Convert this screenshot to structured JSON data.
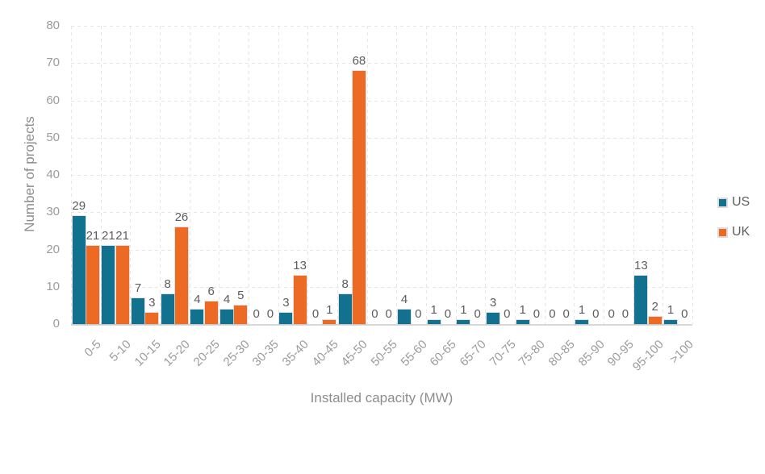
{
  "chart_data": {
    "type": "bar",
    "title": "",
    "xlabel": "Installed capacity (MW)",
    "ylabel": "Number of projects",
    "categories": [
      "0-5",
      "5-10",
      "10-15",
      "15-20",
      "20-25",
      "25-30",
      "30-35",
      "35-40",
      "40-45",
      "45-50",
      "50-55",
      "55-60",
      "60-65",
      "65-70",
      "70-75",
      "75-80",
      "80-85",
      "85-90",
      "90-95",
      "95-100",
      ">100"
    ],
    "series": [
      {
        "name": "US",
        "color": "#11718f",
        "values": [
          29,
          21,
          7,
          8,
          4,
          4,
          0,
          3,
          0,
          8,
          0,
          4,
          1,
          1,
          3,
          1,
          0,
          1,
          0,
          13,
          1
        ]
      },
      {
        "name": "UK",
        "color": "#ec6a23",
        "values": [
          21,
          21,
          3,
          26,
          6,
          5,
          0,
          13,
          1,
          68,
          0,
          0,
          0,
          0,
          0,
          0,
          0,
          0,
          0,
          2,
          0
        ]
      }
    ],
    "ylim": [
      0,
      80
    ],
    "yticks": [
      0,
      10,
      20,
      30,
      40,
      50,
      60,
      70,
      80
    ],
    "grid": "dashed",
    "legend_position": "right",
    "data_labels": true
  },
  "style": {
    "us_color": "#11718f",
    "uk_color": "#ec6a23",
    "grid_color": "#e7e7e7",
    "axis_line_color": "#d9d9d9",
    "tick_label_color": "#9c9c9c",
    "data_label_color": "#5d5d5d",
    "axis_title_color": "#8f8d8b",
    "background": "#ffffff"
  }
}
